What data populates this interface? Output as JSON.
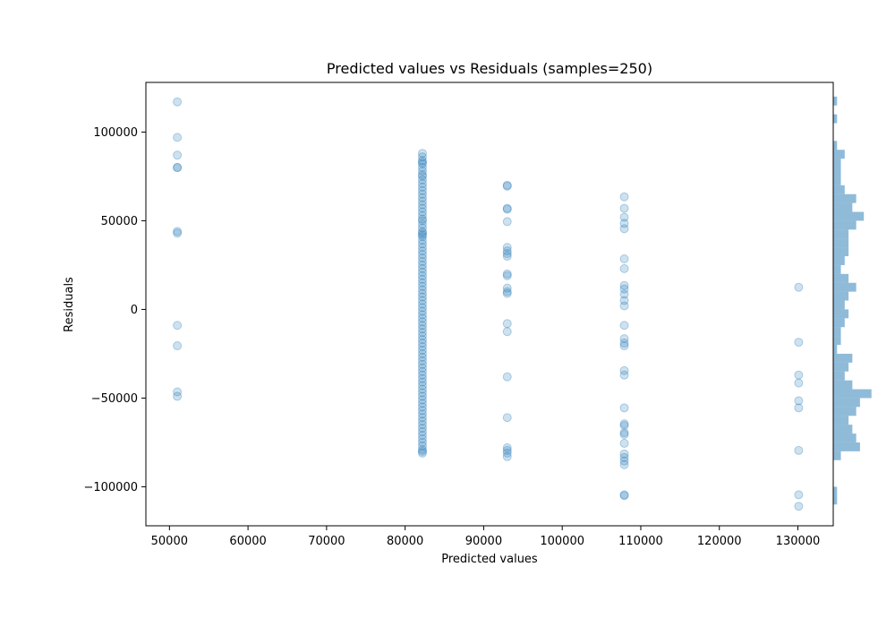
{
  "chart_data": {
    "type": "scatter",
    "title": "Predicted values vs Residuals (samples=250)",
    "xlabel": "Predicted values",
    "ylabel": "Residuals",
    "xlim": [
      47000,
      134500
    ],
    "ylim": [
      -122000,
      128000
    ],
    "xticks": [
      50000,
      60000,
      70000,
      80000,
      90000,
      100000,
      110000,
      120000,
      130000
    ],
    "xtick_labels": [
      "50000",
      "60000",
      "70000",
      "80000",
      "90000",
      "100000",
      "110000",
      "120000",
      "130000"
    ],
    "yticks": [
      -100000,
      -50000,
      0,
      50000,
      100000
    ],
    "ytick_labels": [
      "−100000",
      "−50000",
      "0",
      "50000",
      "100000"
    ],
    "grid": false,
    "point_color": "#1f77b4",
    "point_alpha": 0.22,
    "histogram_color": "#1f77b4",
    "histogram_alpha": 0.5,
    "series": [
      {
        "x": 51000,
        "y": [
          117000,
          97000,
          87000,
          80000,
          80000,
          44000,
          43000,
          -9000,
          -20500,
          -46500,
          -49000
        ]
      },
      {
        "x": 82200,
        "y": [
          88000,
          86000,
          84000,
          83000,
          82000,
          80000,
          78000,
          76000,
          75000,
          73000,
          71000,
          69000,
          67000,
          65000,
          63000,
          61000,
          59000,
          57000,
          55000,
          53000,
          51000,
          50000,
          48000,
          46000,
          44000,
          43000,
          42000,
          41000,
          39000,
          37000,
          35000,
          33000,
          31000,
          29000,
          27000,
          25000,
          23000,
          21000,
          19000,
          17000,
          15000,
          13000,
          11000,
          9000,
          7000,
          5000,
          3000,
          1000,
          -1000,
          -3000,
          -5000,
          -7000,
          -9000,
          -11000,
          -13000,
          -15000,
          -17000,
          -19000,
          -21000,
          -23000,
          -25000,
          -27000,
          -29000,
          -31000,
          -33000,
          -35000,
          -37000,
          -39000,
          -41000,
          -43000,
          -45000,
          -47000,
          -49000,
          -51000,
          -53000,
          -55000,
          -57000,
          -59000,
          -61000,
          -63000,
          -65000,
          -67000,
          -69000,
          -71000,
          -73000,
          -75000,
          -77000,
          -79000,
          -80000,
          -81000
        ]
      },
      {
        "x": 93000,
        "y": [
          70000,
          69500,
          57000,
          56500,
          49500,
          35000,
          33000,
          31500,
          30000,
          20000,
          19000,
          12000,
          10000,
          9000,
          -8000,
          -12500,
          -38000,
          -61000,
          -78000,
          -79500,
          -81000,
          -83000
        ]
      },
      {
        "x": 107900,
        "y": [
          63500,
          57000,
          52000,
          48500,
          45500,
          28500,
          23000,
          13500,
          11500,
          8500,
          5000,
          2000,
          -9000,
          -16500,
          -19000,
          -20500,
          -34500,
          -37000,
          -55500,
          -64500,
          -65500,
          -69500,
          -70500,
          -75500,
          -81500,
          -83500,
          -85500,
          -87500,
          -104500,
          -105000
        ]
      },
      {
        "x": 130100,
        "y": [
          12500,
          -18500,
          -37000,
          -41500,
          -51500,
          -55500,
          -79500,
          -104500,
          -111000
        ]
      }
    ],
    "histogram": {
      "bin_edges": [
        -110000,
        -105000,
        -100000,
        -95000,
        -90000,
        -85000,
        -80000,
        -75000,
        -70000,
        -65000,
        -60000,
        -55000,
        -50000,
        -45000,
        -40000,
        -35000,
        -30000,
        -25000,
        -20000,
        -15000,
        -10000,
        -5000,
        0,
        5000,
        10000,
        15000,
        20000,
        25000,
        30000,
        35000,
        40000,
        45000,
        50000,
        55000,
        60000,
        65000,
        70000,
        75000,
        80000,
        85000,
        90000,
        95000,
        100000,
        105000,
        110000,
        115000,
        120000
      ],
      "counts": [
        1,
        1,
        0,
        0,
        0,
        2,
        7,
        6,
        5,
        4,
        6,
        7,
        10,
        5,
        3,
        4,
        5,
        1,
        2,
        2,
        3,
        4,
        3,
        4,
        6,
        4,
        2,
        3,
        4,
        4,
        4,
        6,
        8,
        5,
        6,
        3,
        2,
        2,
        2,
        3,
        1,
        0,
        0,
        1,
        0,
        1
      ],
      "max_count": 11
    }
  }
}
